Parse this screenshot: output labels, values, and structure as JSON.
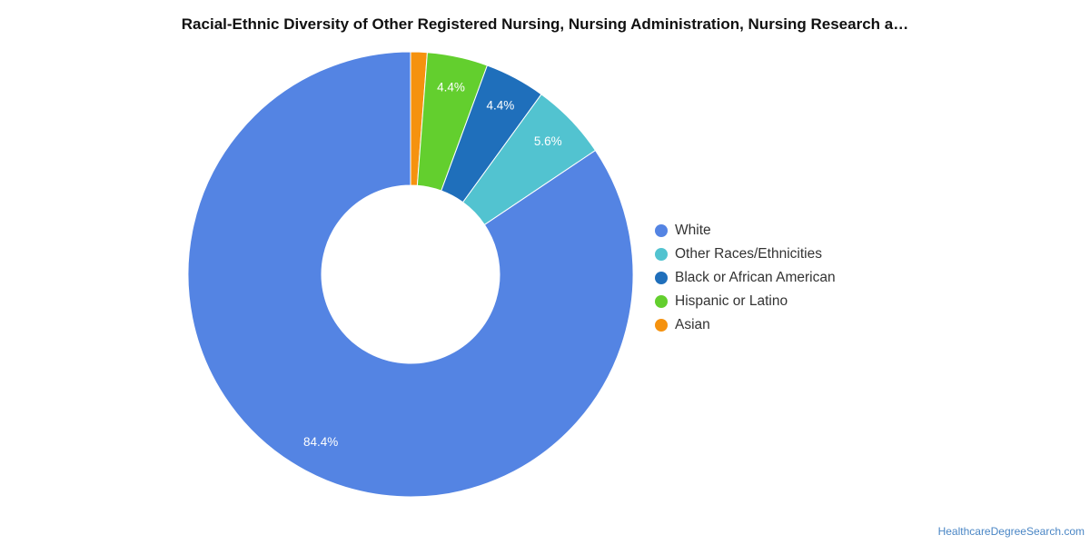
{
  "chart_data": {
    "type": "pie",
    "title": "Racial-Ethnic Diversity of Other Registered Nursing, Nursing Administration, Nursing Research a…",
    "donut": true,
    "slices": [
      {
        "name": "White",
        "value": 84.4,
        "label": "84.4%",
        "color": "#5484e3"
      },
      {
        "name": "Other Races/Ethnicities",
        "value": 5.6,
        "label": "5.6%",
        "color": "#52c3d0"
      },
      {
        "name": "Black or African American",
        "value": 4.4,
        "label": "4.4%",
        "color": "#1f6fbb"
      },
      {
        "name": "Hispanic or Latino",
        "value": 4.4,
        "label": "4.4%",
        "color": "#63cf2e"
      },
      {
        "name": "Asian",
        "value": 1.2,
        "label": "",
        "color": "#f5920f"
      }
    ],
    "legend_position": "right"
  },
  "source": "HealthcareDegreeSearch.com"
}
